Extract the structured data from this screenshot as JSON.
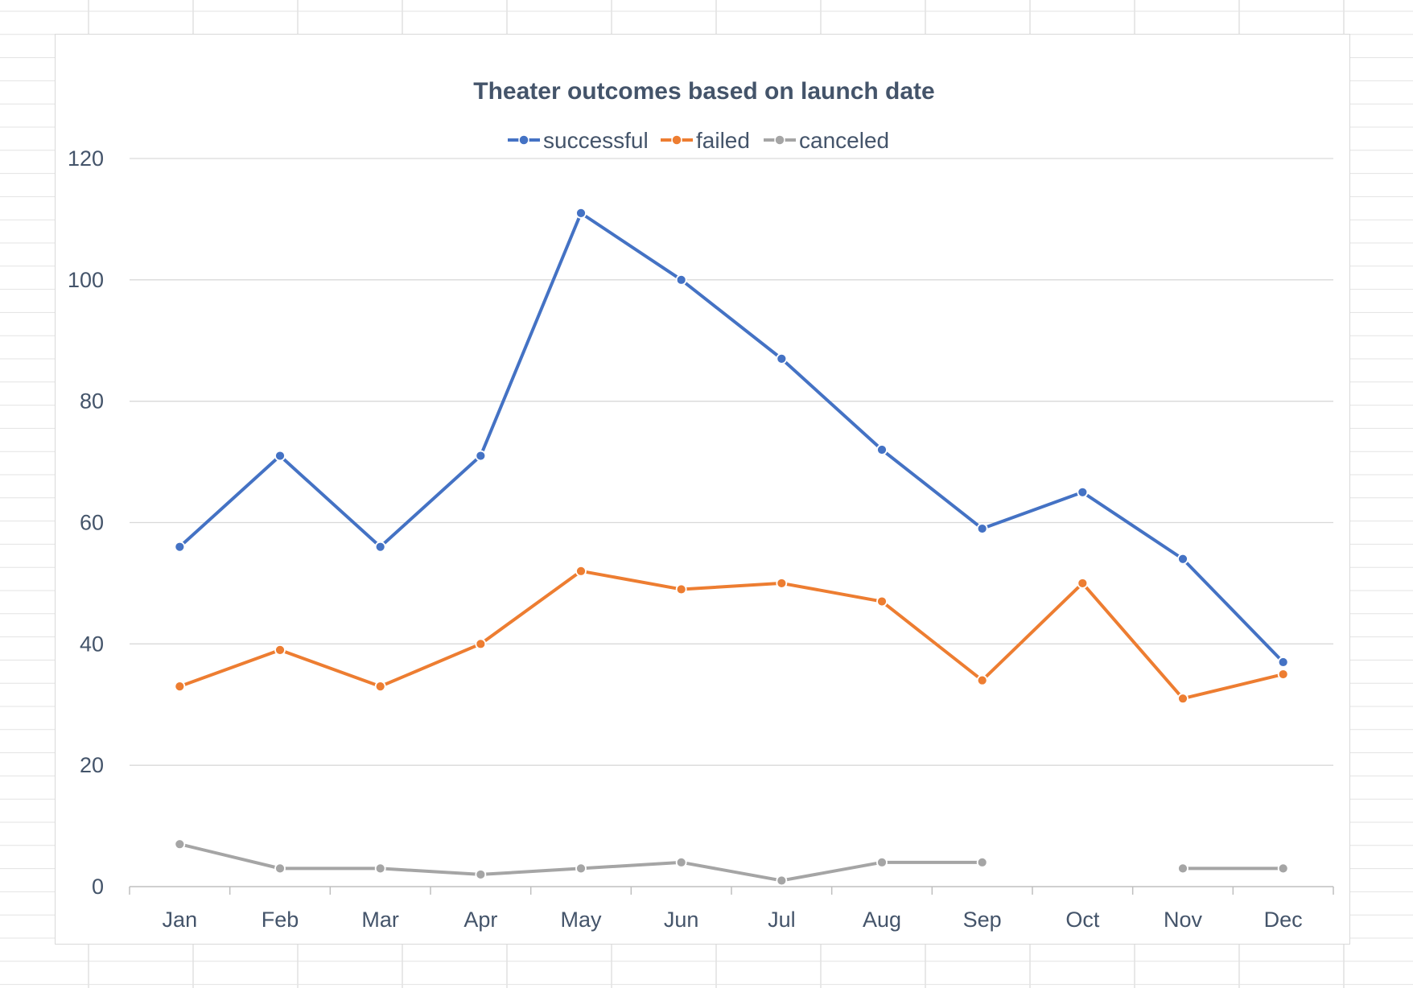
{
  "chart_data": {
    "type": "line",
    "title": "Theater outcomes based on launch date",
    "xlabel": "",
    "ylabel": "",
    "categories": [
      "Jan",
      "Feb",
      "Mar",
      "Apr",
      "May",
      "Jun",
      "Jul",
      "Aug",
      "Sep",
      "Oct",
      "Nov",
      "Dec"
    ],
    "ylim": [
      0,
      120
    ],
    "yticks": [
      "0",
      "20",
      "40",
      "60",
      "80",
      "100",
      "120"
    ],
    "grid": true,
    "legend_position": "top",
    "series": [
      {
        "name": "successful",
        "color": "#4472c4",
        "values": [
          56,
          71,
          56,
          71,
          111,
          100,
          87,
          72,
          59,
          65,
          54,
          37
        ]
      },
      {
        "name": "failed",
        "color": "#ed7d31",
        "values": [
          33,
          39,
          33,
          40,
          52,
          49,
          50,
          47,
          34,
          50,
          31,
          35
        ]
      },
      {
        "name": "canceled",
        "color": "#a5a5a5",
        "values": [
          7,
          3,
          3,
          2,
          3,
          4,
          1,
          4,
          4,
          null,
          3,
          3
        ]
      }
    ]
  }
}
